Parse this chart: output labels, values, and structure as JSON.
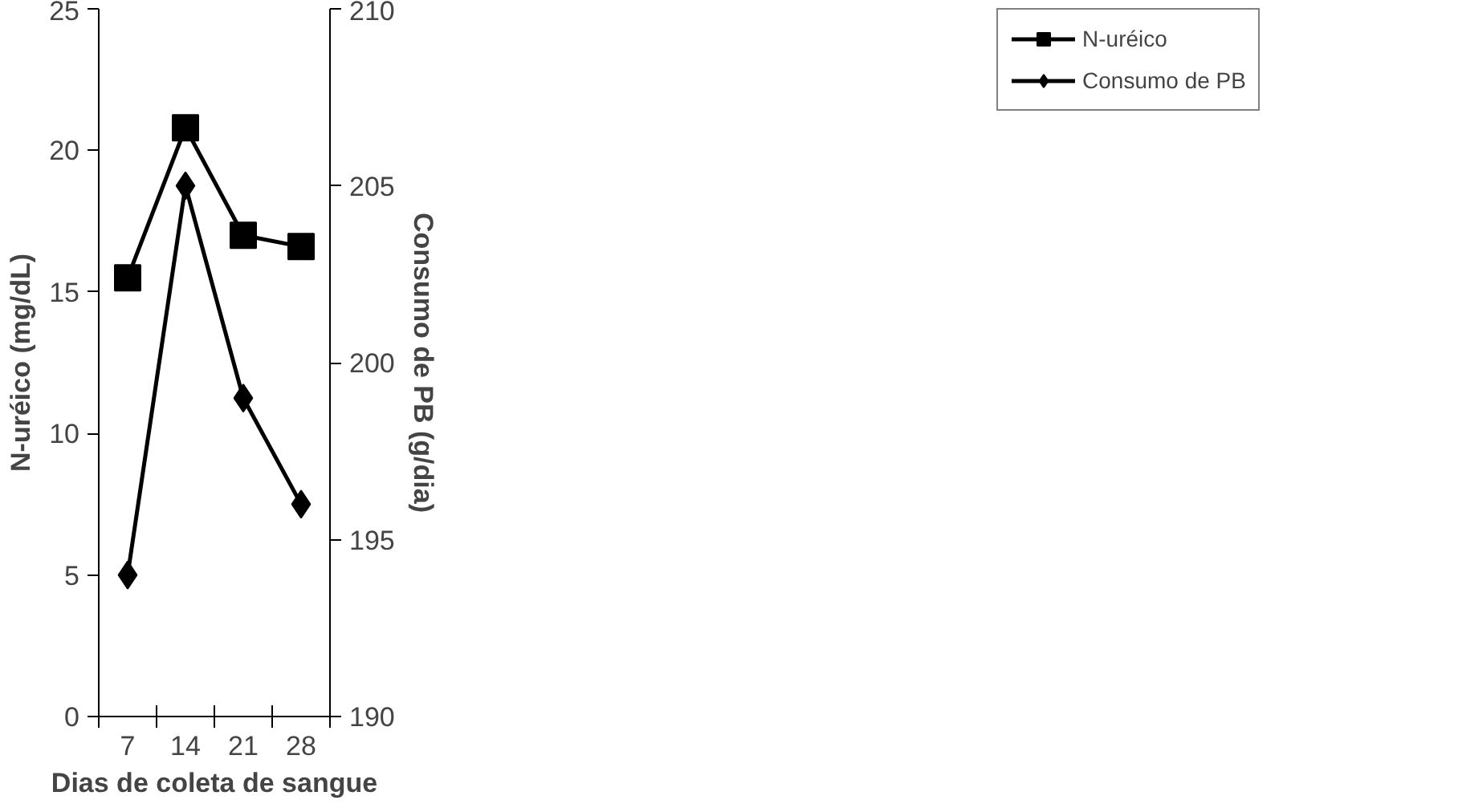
{
  "chart_data": {
    "type": "line",
    "xlabel": "Dias de coleta de sangue",
    "ylabel": "N-uréico (mg/dL)",
    "y2label": "Consumo de PB (g/dia)",
    "categories": [
      "7",
      "14",
      "21",
      "28"
    ],
    "series": [
      {
        "name": "N-uréico",
        "color": "#000000",
        "marker": "square",
        "values": [
          15.5,
          20.8,
          17.0,
          16.6
        ]
      },
      {
        "name": "Consumo de PB",
        "color": "#000000",
        "marker": "diamond",
        "axis": "y2",
        "values": [
          194,
          205,
          199,
          196
        ]
      }
    ],
    "ylim": [
      0,
      25
    ],
    "yticks": [
      0,
      5,
      10,
      15,
      20,
      25
    ],
    "y2lim": [
      190,
      210
    ],
    "y2ticks": [
      190,
      195,
      200,
      205,
      210
    ],
    "grid": false,
    "legend": "top right",
    "line_style": "solid"
  }
}
